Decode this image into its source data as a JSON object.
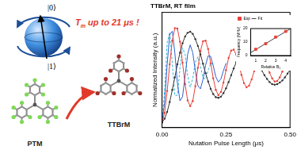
{
  "graphic": {
    "state_0": "|0⟩",
    "state_1": "|1⟩",
    "highlight": {
      "symbol": "T",
      "subscript": "m",
      "text": "up to 21 μs !"
    },
    "molecules": [
      {
        "label": "PTM",
        "color": "#7ed957"
      },
      {
        "label": "TTBrM",
        "color": "#a0302a"
      }
    ]
  },
  "chart_data": [
    {
      "type": "line",
      "title": "TTBrM, RT film",
      "x_label": "Nutation Pulse Length (μs)",
      "y_label": "Normalized Intensity (a.u.)",
      "x": [
        0,
        0.01,
        0.02,
        0.03,
        0.04,
        0.05,
        0.06,
        0.07,
        0.08,
        0.09,
        0.1,
        0.11,
        0.12,
        0.13,
        0.14,
        0.15,
        0.16,
        0.17,
        0.18,
        0.19,
        0.2,
        0.21,
        0.22,
        0.23,
        0.24,
        0.25,
        0.26,
        0.27,
        0.28,
        0.29,
        0.3,
        0.31,
        0.32,
        0.33,
        0.34,
        0.35,
        0.36,
        0.37,
        0.38,
        0.39,
        0.4,
        0.41,
        0.42,
        0.43,
        0.44,
        0.45,
        0.46,
        0.47,
        0.48,
        0.49,
        0.5
      ],
      "series": [
        {
          "color": "#333333",
          "marker": "circle",
          "line_style": "solid",
          "values": [
            -1.0,
            -0.93,
            -0.8,
            -0.61,
            -0.38,
            -0.14,
            0.11,
            0.33,
            0.51,
            0.64,
            0.71,
            0.73,
            0.69,
            0.59,
            0.46,
            0.3,
            0.12,
            -0.06,
            -0.22,
            -0.36,
            -0.46,
            -0.52,
            -0.53,
            -0.51,
            -0.44,
            -0.35,
            -0.23,
            -0.1,
            0.03,
            0.15,
            0.25,
            0.33,
            0.37,
            0.39,
            0.37,
            0.33,
            0.26,
            0.18,
            0.08,
            -0.01,
            -0.1,
            -0.17,
            -0.23,
            -0.27,
            -0.28,
            -0.27,
            -0.24,
            -0.2,
            -0.14,
            -0.07,
            0.0
          ]
        },
        {
          "color": "#e8413a",
          "marker": "circle",
          "line_style": "solid",
          "values": [
            -1.0,
            -0.82,
            -0.4,
            0.11,
            0.56,
            0.8,
            0.79,
            0.54,
            0.14,
            -0.27,
            -0.58,
            -0.69,
            -0.59,
            -0.31,
            0.04,
            0.36,
            0.55,
            0.56,
            0.4,
            0.13,
            -0.16,
            -0.38,
            -0.48,
            -0.42,
            -0.24,
            0.0,
            0.23,
            0.37,
            0.39,
            0.29,
            0.11,
            -0.09,
            -0.25,
            -0.33,
            -0.3,
            -0.18,
            -0.02,
            0.14,
            0.25,
            0.27,
            0.21,
            0.09,
            -0.05,
            -0.16,
            -0.22,
            -0.21,
            -0.14,
            -0.03,
            0.09,
            0.16,
            0.19
          ]
        },
        {
          "color": "#2f5fd0",
          "marker": "none",
          "line_style": "solid",
          "values": [
            -1.0,
            -0.62,
            0.11,
            0.68,
            0.74,
            0.33,
            -0.25,
            -0.59,
            -0.51,
            -0.12,
            0.3,
            0.48,
            0.33,
            -0.01,
            -0.3,
            -0.36,
            -0.18,
            0.09,
            0.27,
            0.26,
            0.08,
            -0.13,
            -0.23,
            -0.17,
            -0.01,
            0.13,
            null,
            null,
            null,
            null,
            null,
            null,
            null,
            null,
            null,
            null,
            null,
            null,
            null,
            null,
            null,
            null,
            null,
            null,
            null,
            null,
            null,
            null,
            null,
            null,
            null
          ]
        },
        {
          "color": "#27b6d8",
          "marker": "none",
          "line_style": "dashed",
          "values": [
            -1.0,
            -0.39,
            0.52,
            0.72,
            0.13,
            -0.49,
            -0.48,
            0.03,
            0.42,
            0.3,
            -0.11,
            -0.33,
            -0.16,
            0.15,
            0.25,
            0.07,
            -0.15,
            -0.17,
            -0.01,
            0.13,
            0.11,
            null,
            null,
            null,
            null,
            null,
            null,
            null,
            null,
            null,
            null,
            null,
            null,
            null,
            null,
            null,
            null,
            null,
            null,
            null,
            null,
            null,
            null,
            null,
            null,
            null,
            null,
            null,
            null,
            null,
            null
          ]
        }
      ],
      "xlim": [
        0,
        0.5
      ],
      "xticks": [
        {
          "value": 0,
          "label": "0.00"
        },
        {
          "value": 0.25,
          "label": "0.25"
        },
        {
          "value": 0.5,
          "label": "0.50"
        }
      ],
      "ylim": [
        -1.1,
        1.1
      ],
      "tick_labels": "x",
      "grid": false
    },
    {
      "type": "scatter",
      "x_label": "Relative B₁",
      "y_label": "Frequency (MHz)",
      "series": [
        {
          "name": "Exp",
          "type": "scatter",
          "marker": "square",
          "color": "#e8413a",
          "x": [
            1,
            2,
            3,
            4
          ],
          "values": [
            4.6,
            8.8,
            13.7,
            17.9
          ]
        },
        {
          "name": "Fit",
          "type": "line",
          "marker": "none",
          "line_style": "solid",
          "color": "#444444",
          "x": [
            0.5,
            4.5
          ],
          "values": [
            2.2,
            20
          ]
        }
      ],
      "xlim": [
        0.5,
        4.5
      ],
      "xticks": [
        1,
        2,
        3,
        4
      ],
      "ylim": [
        0,
        20
      ],
      "yticks": [
        0,
        10,
        20
      ],
      "legend": "upper left",
      "grid": false
    }
  ]
}
